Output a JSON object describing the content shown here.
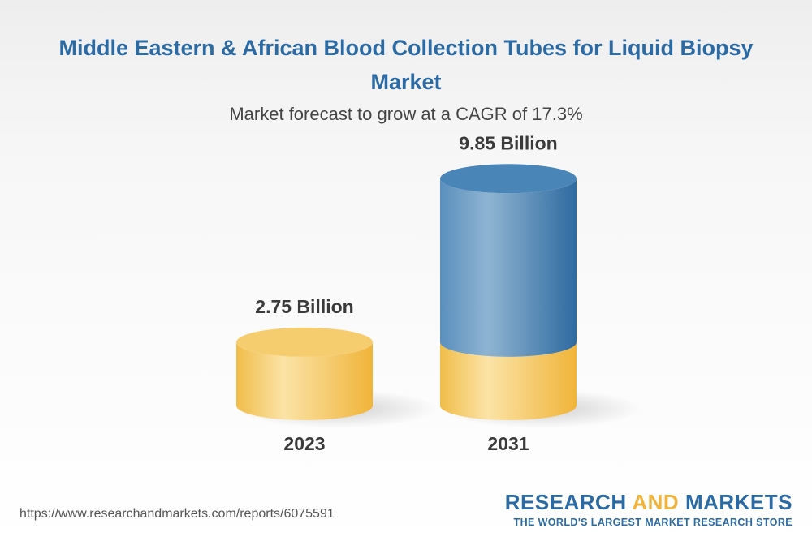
{
  "chart_data": {
    "type": "bar",
    "title": "Middle Eastern & African Blood Collection Tubes for Liquid Biopsy Market",
    "subtitle": "Market forecast to grow at a CAGR of 17.3%",
    "categories": [
      "2023",
      "2031"
    ],
    "values": [
      2.75,
      9.85
    ],
    "value_labels": [
      "2.75 Billion",
      "9.85 Billion"
    ],
    "colors": {
      "base": "#f3c65e",
      "growth": "#3d7bb0"
    }
  },
  "footer": {
    "url": "https://www.researchandmarkets.com/reports/6075591",
    "brand_part1": "RESEARCH ",
    "brand_part2": "AND",
    "brand_part3": " MARKETS",
    "tagline": "THE WORLD'S LARGEST MARKET RESEARCH STORE"
  }
}
